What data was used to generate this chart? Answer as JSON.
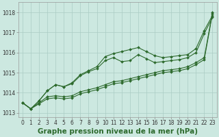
{
  "xlabel": "Graphe pression niveau de la mer (hPa)",
  "x": [
    0,
    1,
    2,
    3,
    4,
    5,
    6,
    7,
    8,
    9,
    10,
    11,
    12,
    13,
    14,
    15,
    16,
    17,
    18,
    19,
    20,
    21,
    22,
    23
  ],
  "series": [
    [
      1013.5,
      1013.2,
      1013.6,
      1014.1,
      1014.4,
      1014.3,
      1014.5,
      1014.9,
      1015.1,
      1015.3,
      1015.8,
      1015.95,
      1016.05,
      1016.15,
      1016.25,
      1016.05,
      1015.85,
      1015.75,
      1015.8,
      1015.85,
      1015.9,
      1016.2,
      1017.1,
      1017.85
    ],
    [
      1013.5,
      1013.2,
      1013.6,
      1014.1,
      1014.4,
      1014.3,
      1014.45,
      1014.85,
      1015.05,
      1015.2,
      1015.6,
      1015.75,
      1015.55,
      1015.6,
      1015.9,
      1015.7,
      1015.5,
      1015.55,
      1015.6,
      1015.65,
      1015.75,
      1016.0,
      1016.95,
      1017.75
    ],
    [
      1013.5,
      1013.2,
      1013.5,
      1013.8,
      1013.85,
      1013.8,
      1013.85,
      1014.05,
      1014.15,
      1014.25,
      1014.4,
      1014.55,
      1014.6,
      1014.7,
      1014.8,
      1014.9,
      1015.0,
      1015.1,
      1015.15,
      1015.2,
      1015.3,
      1015.5,
      1015.75,
      1018.0
    ],
    [
      1013.5,
      1013.2,
      1013.45,
      1013.7,
      1013.75,
      1013.7,
      1013.75,
      1013.95,
      1014.05,
      1014.15,
      1014.3,
      1014.45,
      1014.5,
      1014.6,
      1014.7,
      1014.8,
      1014.9,
      1015.0,
      1015.05,
      1015.1,
      1015.2,
      1015.4,
      1015.65,
      1017.95
    ]
  ],
  "line_color": "#2d6a2d",
  "marker": "D",
  "markersize": 2.0,
  "linewidth": 0.8,
  "bg_color": "#cce8e0",
  "grid_color": "#aaccc4",
  "ylim": [
    1012.8,
    1018.5
  ],
  "yticks": [
    1013,
    1014,
    1015,
    1016,
    1017,
    1018
  ],
  "xticks": [
    0,
    1,
    2,
    3,
    4,
    5,
    6,
    7,
    8,
    9,
    10,
    11,
    12,
    13,
    14,
    15,
    16,
    17,
    18,
    19,
    20,
    21,
    22,
    23
  ],
  "tick_fontsize": 5.5,
  "label_fontsize": 7.5,
  "fig_bg": "#cce8e0"
}
